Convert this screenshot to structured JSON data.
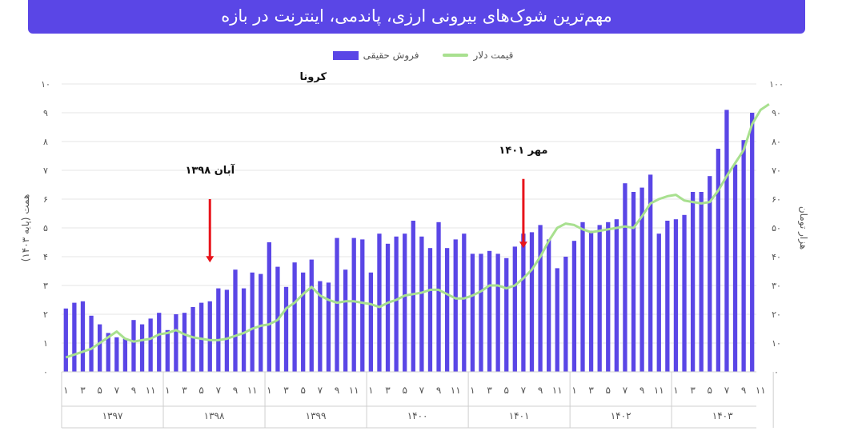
{
  "title": "مهم‌ترین شوک‌های بیرونی ارزی، پاندمی، اینترنت در بازه",
  "colors": {
    "title_bg": "#5a46e6",
    "bar": "#5a46e6",
    "line": "#a8e08f",
    "arrow": "#e8141b"
  },
  "legend": [
    {
      "label": "قیمت دلار",
      "kind": "line"
    },
    {
      "label": "فروش حقیقی",
      "kind": "bar"
    }
  ],
  "chart_data": {
    "type": "bar",
    "series": [
      {
        "name": "فروش حقیقی",
        "type": "bar",
        "axis": "left",
        "values": [
          2.2,
          2.4,
          2.45,
          1.95,
          1.65,
          1.35,
          1.2,
          1.15,
          1.8,
          1.65,
          1.85,
          2.05,
          1.45,
          2.0,
          2.05,
          2.25,
          2.4,
          2.45,
          2.9,
          2.85,
          3.55,
          2.9,
          3.45,
          3.4,
          4.5,
          3.65,
          2.95,
          3.8,
          3.45,
          3.9,
          3.15,
          3.1,
          4.65,
          3.55,
          4.65,
          4.6,
          3.45,
          4.8,
          4.45,
          4.7,
          4.8,
          5.25,
          4.7,
          4.3,
          5.2,
          4.3,
          4.6,
          4.8,
          4.1,
          4.1,
          4.2,
          4.1,
          3.95,
          4.35,
          4.8,
          4.85,
          5.1,
          4.6,
          3.6,
          4.0,
          4.55,
          5.2,
          4.9,
          5.1,
          5.2,
          5.3,
          6.55,
          6.25,
          6.4,
          6.85,
          4.8,
          5.25,
          5.3,
          5.45,
          6.25,
          6.25,
          6.8,
          7.75,
          9.1,
          7.2,
          8.05,
          9.0
        ],
        "label_fa_note": ""
      },
      {
        "name": "قیمت دلار",
        "type": "line",
        "axis": "right",
        "values": [
          5,
          6,
          7,
          8,
          10,
          12,
          14,
          11.5,
          10.5,
          11,
          11.5,
          13,
          13.5,
          14.5,
          13,
          12,
          11.5,
          11,
          11,
          11.5,
          12.5,
          13.5,
          15,
          16,
          16.5,
          18,
          22,
          24,
          27,
          29.5,
          26.5,
          25,
          24,
          24.5,
          24.5,
          24,
          23.5,
          22.5,
          24,
          25,
          26.5,
          27,
          27.5,
          28.5,
          28.5,
          27,
          25.5,
          25.5,
          26.5,
          28,
          30,
          30,
          29,
          30,
          32.5,
          35.5,
          40,
          45.5,
          50,
          51.5,
          51,
          49.5,
          48.5,
          49,
          49.5,
          50,
          50.5,
          50,
          54,
          58.5,
          60,
          61,
          61.5,
          59.5,
          59,
          58.5,
          59,
          63,
          68,
          72.5,
          77,
          86,
          91,
          93
        ]
      }
    ],
    "yLeft": {
      "label": "همت (پایه ۱۴۰۳)",
      "ticks": [
        "۰",
        "۱",
        "۲",
        "۳",
        "۴",
        "۵",
        "۶",
        "۷",
        "۸",
        "۹",
        "۱۰"
      ],
      "ylim": [
        0,
        10
      ]
    },
    "yRight": {
      "label": "هزار تومان",
      "ticks": [
        "۰",
        "۱۰",
        "۲۰",
        "۳۰",
        "۴۰",
        "۵۰",
        "۶۰",
        "۷۰",
        "۸۰",
        "۹۰",
        "۱۰۰"
      ],
      "ylim": [
        0,
        100
      ]
    },
    "month_ticks": [
      "۱",
      "۳",
      "۵",
      "۷",
      "۹",
      "۱۱"
    ],
    "years": [
      "۱۳۹۷",
      "۱۳۹۸",
      "۱۳۹۹",
      "۱۴۰۰",
      "۱۴۰۱",
      "۱۴۰۲",
      "۱۴۰۳"
    ],
    "annotations": [
      {
        "text": "آبان ۱۳۹۸",
        "index": 17,
        "arrow_from": 6.0,
        "arrow_to": 3.8
      },
      {
        "text": "کرونا",
        "index": 29,
        "arrow_from": null,
        "arrow_to": null
      },
      {
        "text": "مهر ۱۴۰۱",
        "index": 54,
        "arrow_from": 6.7,
        "arrow_to": 4.3
      }
    ],
    "grid": true,
    "legend_position": "top"
  }
}
